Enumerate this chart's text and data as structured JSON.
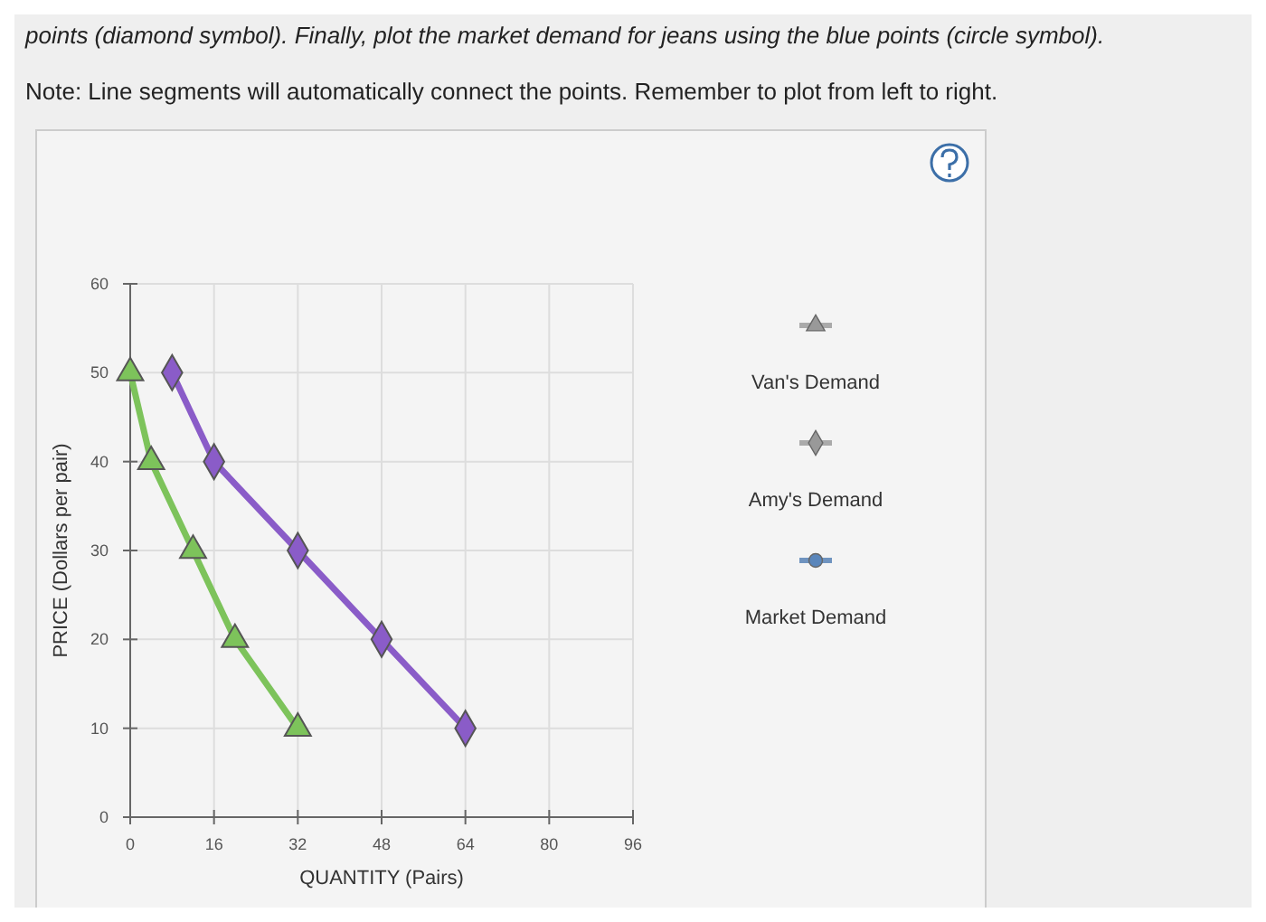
{
  "chart_data": {
    "type": "line",
    "title": "points (diamond symbol). Finally, plot the market demand for jeans using the blue points (circle symbol).",
    "subtitle": "Note: Line segments will automatically connect the points. Remember to plot from left to right.",
    "xlabel": "QUANTITY (Pairs)",
    "ylabel": "PRICE (Dollars per pair)",
    "xlim": [
      0,
      96
    ],
    "ylim": [
      0,
      60
    ],
    "xticks": [
      0,
      16,
      32,
      48,
      64,
      80,
      96
    ],
    "yticks": [
      0,
      10,
      20,
      30,
      40,
      50,
      60
    ],
    "grid": true,
    "line_style": "solid",
    "annotations": [
      "Van's Demand",
      "Amy's Demand",
      "Market Demand"
    ],
    "series": [
      {
        "color": "#7dc35b",
        "marker": "triangle",
        "x": [
          0,
          4,
          12,
          20,
          32
        ],
        "values": [
          50,
          40,
          30,
          20,
          10
        ]
      },
      {
        "color": "#8a5cc8",
        "marker": "diamond",
        "x": [
          8,
          16,
          32,
          48,
          64
        ],
        "values": [
          50,
          40,
          30,
          20,
          10
        ]
      }
    ]
  }
}
